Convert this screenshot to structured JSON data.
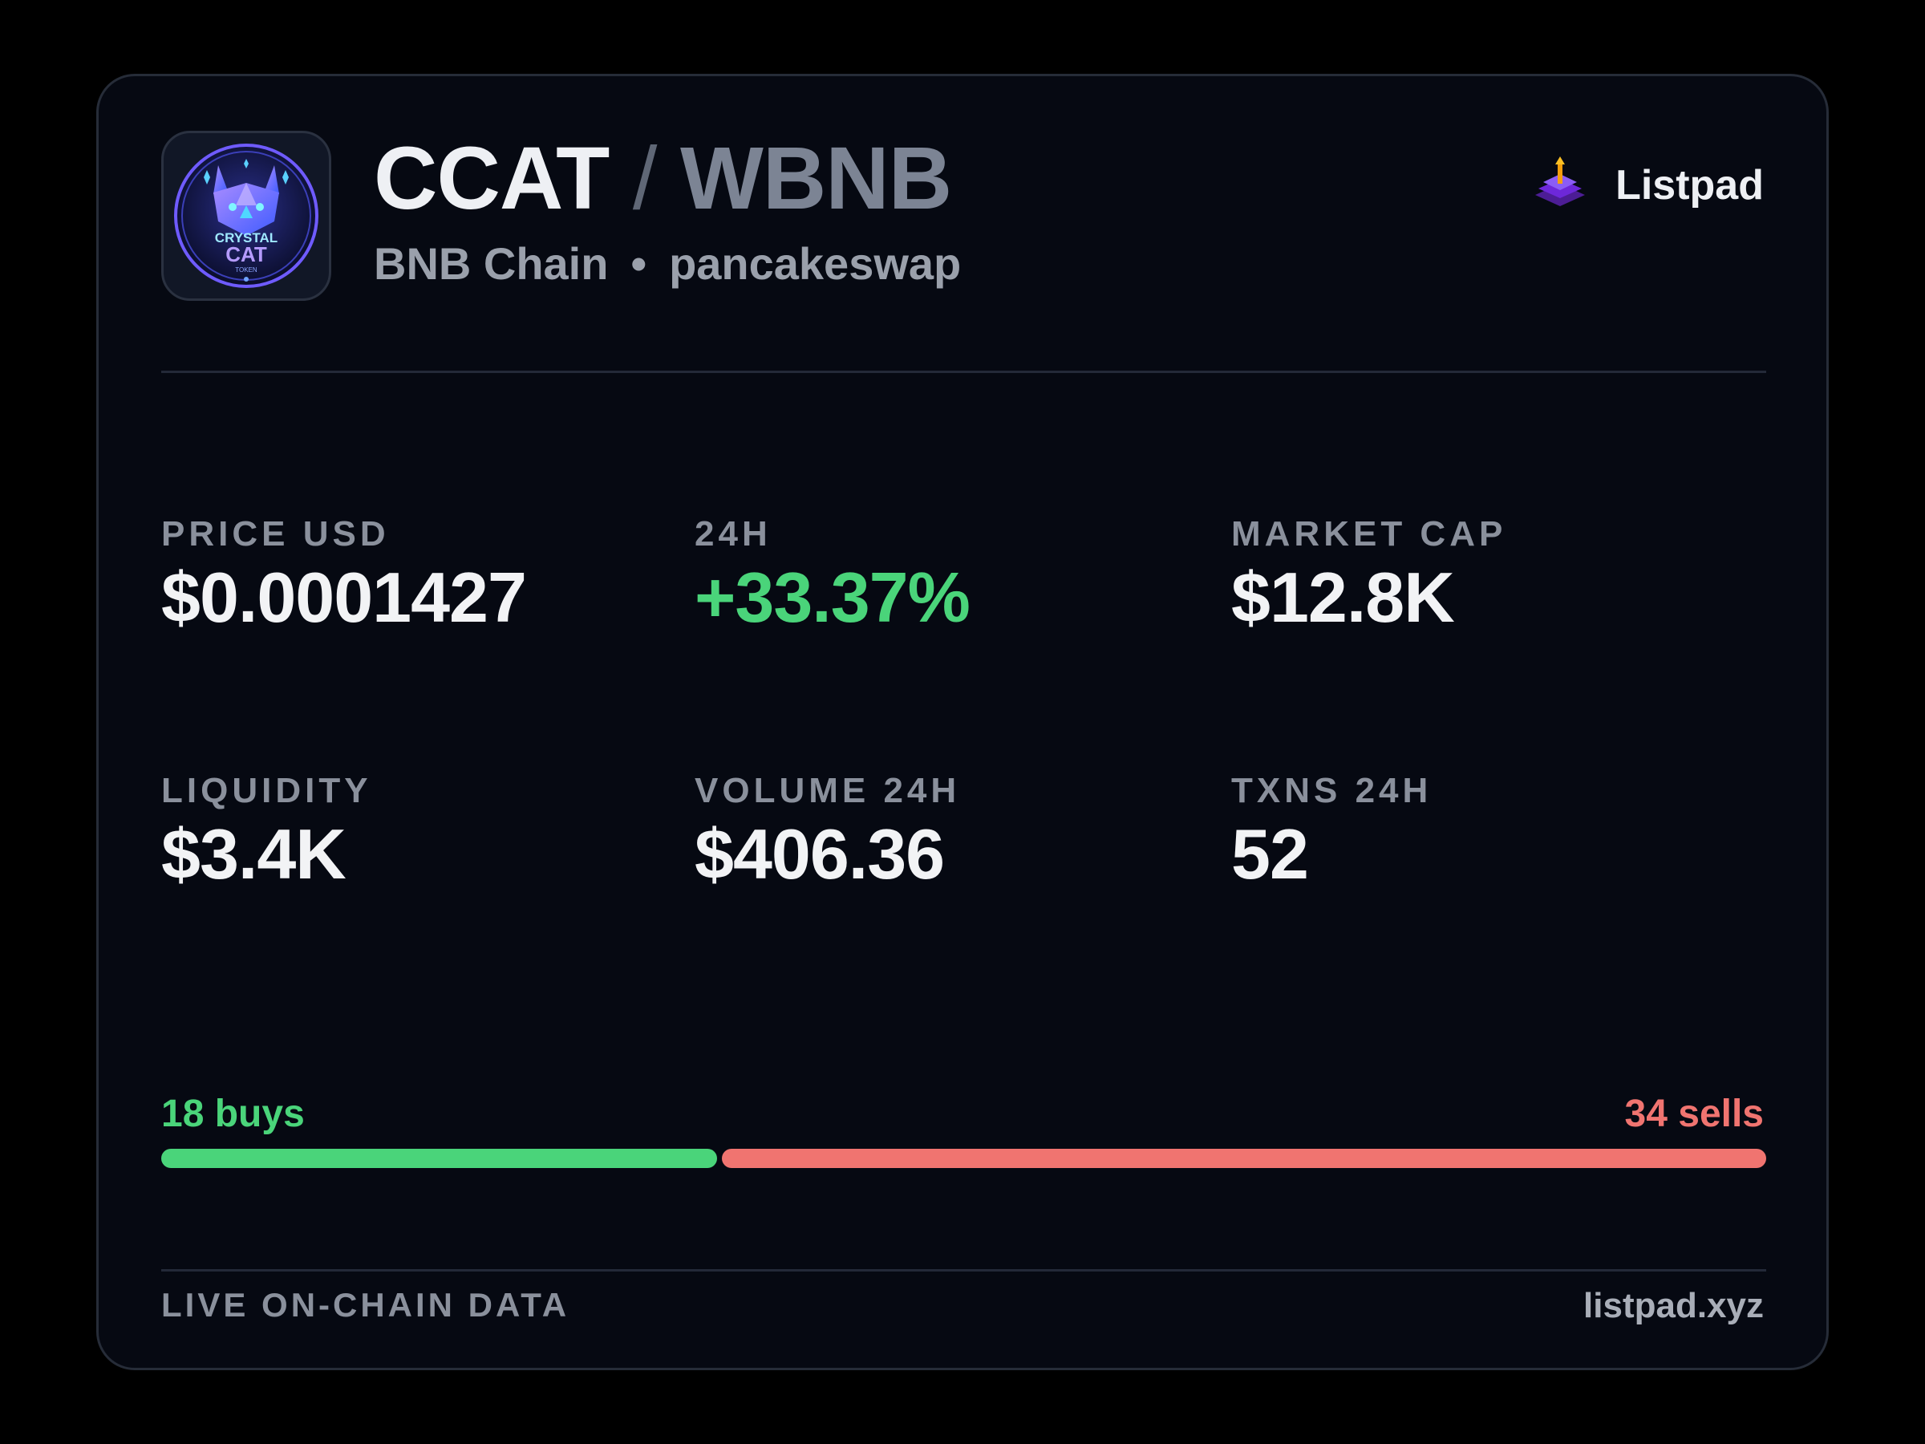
{
  "pair": {
    "base": "CCAT",
    "separator": "/",
    "quote": "WBNB",
    "chain": "BNB Chain",
    "dot": "•",
    "dex": "pancakeswap",
    "logo_icon": "crystal-cat-token-logo"
  },
  "brand": {
    "name": "Listpad",
    "icon": "listpad-logo-icon"
  },
  "stats": {
    "price": {
      "label": "PRICE USD",
      "value": "$0.0001427"
    },
    "change": {
      "label": "24H",
      "value": "+33.37%"
    },
    "mcap": {
      "label": "MARKET CAP",
      "value": "$12.8K"
    },
    "liquidity": {
      "label": "LIQUIDITY",
      "value": "$3.4K"
    },
    "volume": {
      "label": "VOLUME 24H",
      "value": "$406.36"
    },
    "txns": {
      "label": "TXNS 24H",
      "value": "52"
    }
  },
  "trades": {
    "buys_label": "18 buys",
    "sells_label": "34 sells",
    "buys": 18,
    "sells": 34
  },
  "footer": {
    "left": "LIVE ON-CHAIN DATA",
    "right": "listpad.xyz"
  },
  "colors": {
    "background": "#000000",
    "card": "#060912",
    "positive": "#4ad47a",
    "negative": "#f07470",
    "brand_purple": "#7c3aed"
  }
}
